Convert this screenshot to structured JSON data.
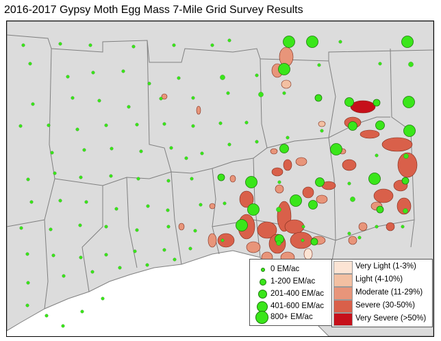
{
  "title": "2016-2017 Gypsy Moth Egg Mass 7-Mile Grid Survey Results",
  "colors": {
    "land": "#dcdcdc",
    "water": "#ffffff",
    "boundary": "#7f7f7f",
    "survey_point": "#3ae61a",
    "survey_point_outline": "#1d7a0c"
  },
  "legend_egg_mass": [
    {
      "label": "0 EM/ac",
      "size": 1
    },
    {
      "label": "1-200 EM/ac",
      "size": 2
    },
    {
      "label": "201-400 EM/ac",
      "size": 3
    },
    {
      "label": "401-600 EM/ac",
      "size": 4
    },
    {
      "label": "800+ EM/ac",
      "size": 5
    }
  ],
  "legend_defoliation": [
    {
      "label": "Very Light (1-3%)",
      "color": "#fce4d4"
    },
    {
      "label": "Light (4-10%)",
      "color": "#f3c0a2"
    },
    {
      "label": "Moderate (11-29%)",
      "color": "#e8957a"
    },
    {
      "label": "Severe (30-50%)",
      "color": "#d9604a"
    },
    {
      "label": "Very Severe (>50%)",
      "color": "#c6101a"
    }
  ]
}
